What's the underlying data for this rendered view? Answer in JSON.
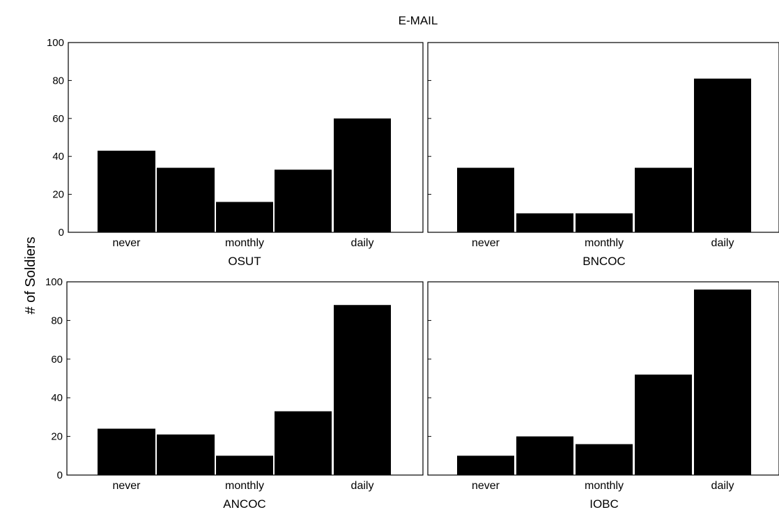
{
  "title": "E-MAIL",
  "ylabel": "# of Soldiers",
  "chart_data": [
    {
      "type": "bar",
      "title": "OSUT",
      "categories": [
        "never",
        "",
        "monthly",
        "",
        "daily"
      ],
      "tick_labels": [
        "never",
        "monthly",
        "daily"
      ],
      "values": [
        43,
        34,
        16,
        33,
        60
      ],
      "ylim": [
        0,
        100
      ],
      "yticks": [
        0,
        20,
        40,
        60,
        80,
        100
      ]
    },
    {
      "type": "bar",
      "title": "BNCOC",
      "categories": [
        "never",
        "",
        "monthly",
        "",
        "daily"
      ],
      "tick_labels": [
        "never",
        "monthly",
        "daily"
      ],
      "values": [
        34,
        10,
        10,
        34,
        81
      ],
      "ylim": [
        0,
        100
      ],
      "yticks": [
        0,
        20,
        40,
        60,
        80,
        100
      ]
    },
    {
      "type": "bar",
      "title": "ANCOC",
      "categories": [
        "never",
        "",
        "monthly",
        "",
        "daily"
      ],
      "tick_labels": [
        "never",
        "monthly",
        "daily"
      ],
      "values": [
        24,
        21,
        10,
        33,
        88
      ],
      "ylim": [
        0,
        100
      ],
      "yticks": [
        0,
        20,
        40,
        60,
        80,
        100
      ]
    },
    {
      "type": "bar",
      "title": "IOBC",
      "categories": [
        "never",
        "",
        "monthly",
        "",
        "daily"
      ],
      "tick_labels": [
        "never",
        "monthly",
        "daily"
      ],
      "values": [
        10,
        20,
        16,
        52,
        96
      ],
      "ylim": [
        0,
        100
      ],
      "yticks": [
        0,
        20,
        40,
        60,
        80,
        100
      ]
    }
  ]
}
